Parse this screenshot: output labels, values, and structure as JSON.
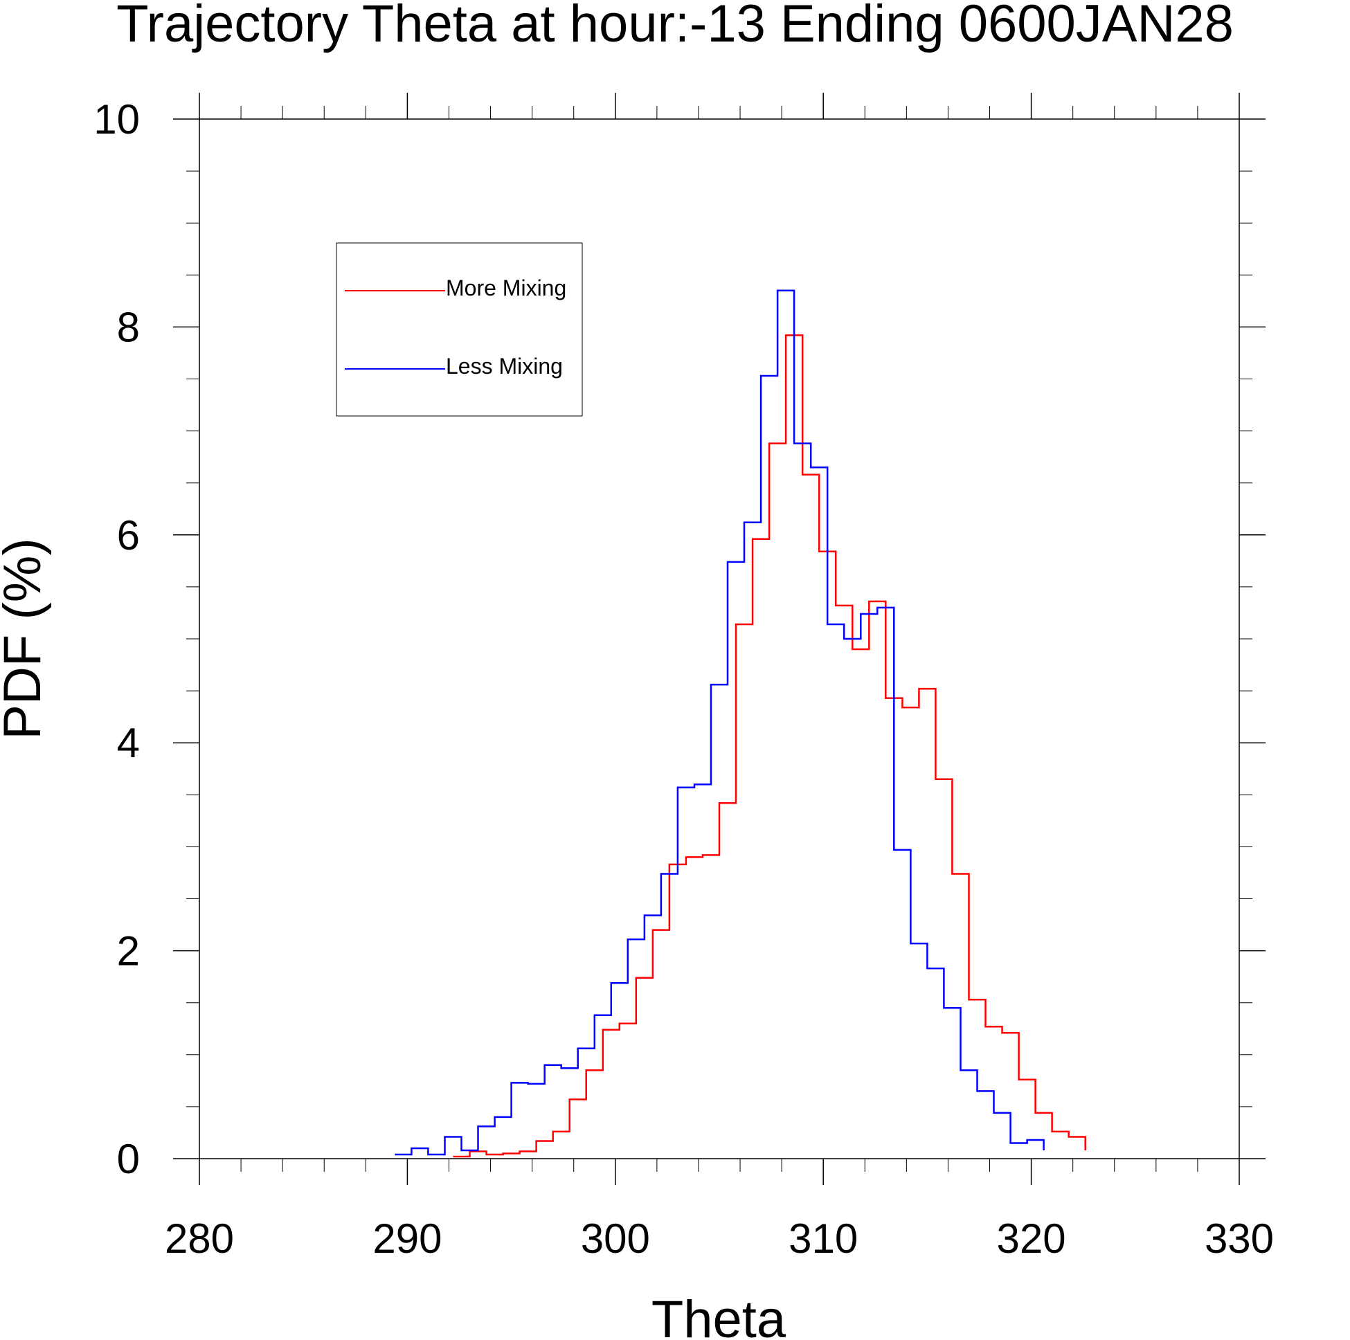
{
  "chart_data": {
    "type": "line",
    "drawstyle": "steps",
    "title": "Trajectory Theta at hour:-13 Ending 0600JAN28",
    "xlabel": "Theta",
    "ylabel": "PDF (%)",
    "xlim": [
      280,
      330
    ],
    "ylim": [
      0,
      10
    ],
    "x_ticks": [
      280,
      290,
      300,
      310,
      320,
      330
    ],
    "x_tick_labels": [
      "280",
      "290",
      "300",
      "310",
      "320",
      "330"
    ],
    "y_ticks": [
      0,
      2,
      4,
      6,
      8,
      10
    ],
    "y_tick_labels": [
      "0",
      "2",
      "4",
      "6",
      "8",
      "10"
    ],
    "grid": false,
    "legend_position": "top-left",
    "series": [
      {
        "name": "More Mixing",
        "color": "#ff0000",
        "bin_edges": [
          292.2,
          293.0,
          293.8,
          294.6,
          295.4,
          296.2,
          297.0,
          297.8,
          298.6,
          299.4,
          300.2,
          301.0,
          301.8,
          302.6,
          303.4,
          304.2,
          305.0,
          305.8,
          306.6,
          307.4,
          308.2,
          309.0,
          309.8,
          310.6,
          311.4,
          312.2,
          313.0,
          313.8,
          314.6,
          315.4,
          316.2,
          317.0,
          317.8,
          318.6,
          319.4,
          320.2,
          321.0,
          321.8,
          322.6
        ],
        "values": [
          0.02,
          0.07,
          0.04,
          0.05,
          0.07,
          0.17,
          0.26,
          0.57,
          0.85,
          1.24,
          1.3,
          1.74,
          2.2,
          2.83,
          2.9,
          2.92,
          3.42,
          5.14,
          5.96,
          6.88,
          7.92,
          6.58,
          5.84,
          5.32,
          4.9,
          5.36,
          4.43,
          4.34,
          4.52,
          3.65,
          2.74,
          1.53,
          1.27,
          1.21,
          0.76,
          0.44,
          0.26,
          0.21,
          0.08
        ]
      },
      {
        "name": "Less Mixing",
        "color": "#0000ff",
        "bin_edges": [
          289.4,
          290.2,
          291.0,
          291.8,
          292.6,
          293.4,
          294.2,
          295.0,
          295.8,
          296.6,
          297.4,
          298.2,
          299.0,
          299.8,
          300.6,
          301.4,
          302.2,
          303.0,
          303.8,
          304.6,
          305.4,
          306.2,
          307.0,
          307.8,
          308.6,
          309.4,
          310.2,
          311.0,
          311.8,
          312.6,
          313.4,
          314.2,
          315.0,
          315.8,
          316.6,
          317.4,
          318.2,
          319.0,
          319.8,
          320.6
        ],
        "values": [
          0.04,
          0.1,
          0.04,
          0.21,
          0.08,
          0.31,
          0.4,
          0.73,
          0.72,
          0.9,
          0.87,
          1.06,
          1.38,
          1.69,
          2.11,
          2.34,
          2.74,
          3.57,
          3.6,
          4.56,
          5.74,
          6.12,
          7.53,
          8.35,
          6.88,
          6.65,
          5.14,
          5.0,
          5.24,
          5.3,
          2.97,
          2.07,
          1.83,
          1.45,
          0.85,
          0.65,
          0.44,
          0.15,
          0.18,
          0.08
        ]
      }
    ]
  }
}
